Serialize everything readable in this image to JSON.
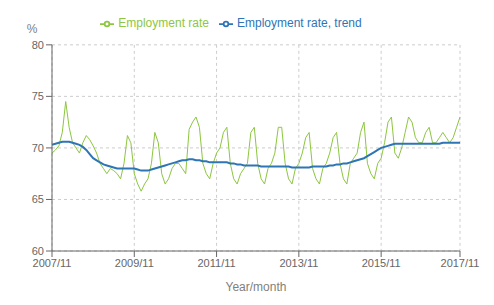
{
  "chart_data": {
    "type": "line",
    "x_label": "Year/month",
    "y_label": "%",
    "categories": [
      "2007/11",
      null,
      null,
      null,
      null,
      null,
      null,
      null,
      null,
      null,
      null,
      null,
      null,
      null,
      null,
      null,
      null,
      null,
      null,
      null,
      null,
      null,
      null,
      null,
      "2009/11",
      null,
      null,
      null,
      null,
      null,
      null,
      null,
      null,
      null,
      null,
      null,
      null,
      null,
      null,
      null,
      null,
      null,
      null,
      null,
      null,
      null,
      null,
      null,
      "2011/11",
      null,
      null,
      null,
      null,
      null,
      null,
      null,
      null,
      null,
      null,
      null,
      null,
      null,
      null,
      null,
      null,
      null,
      null,
      null,
      null,
      null,
      null,
      null,
      "2013/11",
      null,
      null,
      null,
      null,
      null,
      null,
      null,
      null,
      null,
      null,
      null,
      null,
      null,
      null,
      null,
      null,
      null,
      null,
      null,
      null,
      null,
      null,
      null,
      "2015/11",
      null,
      null,
      null,
      null,
      null,
      null,
      null,
      null,
      null,
      null,
      null,
      null,
      null,
      null,
      null,
      null,
      null,
      null,
      null,
      null,
      null,
      null,
      "2017/11"
    ],
    "ylim": [
      60,
      80
    ],
    "yticks": [
      60,
      65,
      70,
      75,
      80
    ],
    "grid": true,
    "legend": "top",
    "series": [
      {
        "name": "Employment rate",
        "color": "#8dc63f",
        "values": [
          69.5,
          69.8,
          70.2,
          71.5,
          74.5,
          72.0,
          70.5,
          70.0,
          69.5,
          70.5,
          71.2,
          70.8,
          70.2,
          69.5,
          68.5,
          68.0,
          67.5,
          68.0,
          67.8,
          67.5,
          67.0,
          68.5,
          71.2,
          70.5,
          67.5,
          66.5,
          65.8,
          66.5,
          67.0,
          68.5,
          71.5,
          70.5,
          67.5,
          66.5,
          67.0,
          68.0,
          68.5,
          68.5,
          68.0,
          67.5,
          71.8,
          72.5,
          73.0,
          72.0,
          68.5,
          67.5,
          67.0,
          68.5,
          69.5,
          70.0,
          71.5,
          72.0,
          68.5,
          67.0,
          66.5,
          67.5,
          68.0,
          68.5,
          71.5,
          72.0,
          68.5,
          67.0,
          66.5,
          68.0,
          68.5,
          69.5,
          72.0,
          72.0,
          68.5,
          67.0,
          66.5,
          68.0,
          68.5,
          69.5,
          71.0,
          71.5,
          68.0,
          67.0,
          66.5,
          68.0,
          68.5,
          69.5,
          71.0,
          71.5,
          68.5,
          67.0,
          66.5,
          68.5,
          69.0,
          69.5,
          71.5,
          72.5,
          68.5,
          67.5,
          67.0,
          68.5,
          69.0,
          70.5,
          72.5,
          73.0,
          69.5,
          69.0,
          70.0,
          71.5,
          73.0,
          72.5,
          71.0,
          70.5,
          70.5,
          71.5,
          72.0,
          70.5,
          70.5,
          71.0,
          71.5,
          71.0,
          70.5,
          71.0,
          72.0,
          73.0
        ]
      },
      {
        "name": "Employment rate, trend",
        "color": "#2e75b6",
        "values": [
          70.3,
          70.4,
          70.5,
          70.6,
          70.6,
          70.6,
          70.5,
          70.4,
          70.3,
          70.1,
          69.8,
          69.4,
          69.0,
          68.8,
          68.6,
          68.4,
          68.3,
          68.2,
          68.1,
          68.0,
          68.0,
          68.0,
          68.0,
          68.0,
          68.0,
          67.9,
          67.8,
          67.8,
          67.8,
          67.9,
          68.0,
          68.1,
          68.2,
          68.3,
          68.4,
          68.5,
          68.6,
          68.7,
          68.8,
          68.8,
          68.9,
          68.9,
          68.8,
          68.8,
          68.7,
          68.7,
          68.6,
          68.6,
          68.6,
          68.6,
          68.6,
          68.6,
          68.5,
          68.5,
          68.4,
          68.4,
          68.3,
          68.3,
          68.3,
          68.3,
          68.3,
          68.2,
          68.2,
          68.2,
          68.2,
          68.2,
          68.2,
          68.2,
          68.2,
          68.2,
          68.1,
          68.1,
          68.1,
          68.1,
          68.1,
          68.1,
          68.2,
          68.2,
          68.2,
          68.2,
          68.2,
          68.3,
          68.3,
          68.4,
          68.4,
          68.5,
          68.5,
          68.6,
          68.7,
          68.8,
          68.9,
          69.0,
          69.2,
          69.4,
          69.6,
          69.8,
          70.0,
          70.1,
          70.2,
          70.3,
          70.4,
          70.4,
          70.4,
          70.4,
          70.4,
          70.4,
          70.4,
          70.4,
          70.4,
          70.4,
          70.4,
          70.4,
          70.4,
          70.4,
          70.5,
          70.5,
          70.5,
          70.5,
          70.5,
          70.5
        ]
      }
    ]
  }
}
